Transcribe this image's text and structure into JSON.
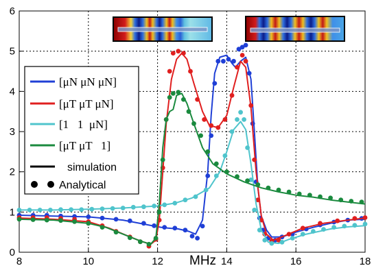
{
  "chart_data": {
    "type": "line",
    "title": "",
    "xlabel": "MHz",
    "ylabel": "",
    "xlim": [
      8,
      18
    ],
    "ylim": [
      0,
      6
    ],
    "grid": true,
    "x_ticks": [
      "8",
      "10",
      "12",
      "14",
      "16",
      "18"
    ],
    "y_ticks": [
      "0",
      "1",
      "2",
      "3",
      "4",
      "5",
      "6"
    ],
    "legend_position": "left",
    "legend": {
      "blue": "[μN μN μN]",
      "red": "[μT μT μN]",
      "cyan": "[1   1  μN]",
      "green": "[μT μT   1]",
      "simulation": "simulation",
      "analytical": "Analytical"
    },
    "colors": {
      "blue": "#1f3fd6",
      "red": "#e01f1f",
      "cyan": "#4fc4cc",
      "green": "#1a8a3e",
      "black": "#000000"
    },
    "series": [
      {
        "key": "blue",
        "line": [
          [
            8,
            0.92
          ],
          [
            9,
            0.9
          ],
          [
            10,
            0.88
          ],
          [
            11,
            0.8
          ],
          [
            11.6,
            0.7
          ],
          [
            11.9,
            0.65
          ],
          [
            12.1,
            0.62
          ],
          [
            12.3,
            0.6
          ],
          [
            12.6,
            0.58
          ],
          [
            12.9,
            0.52
          ],
          [
            13.1,
            0.45
          ],
          [
            13.3,
            0.8
          ],
          [
            13.45,
            2.0
          ],
          [
            13.55,
            3.4
          ],
          [
            13.65,
            4.45
          ],
          [
            13.8,
            4.85
          ],
          [
            14.0,
            4.9
          ],
          [
            14.15,
            4.7
          ],
          [
            14.25,
            4.6
          ],
          [
            14.4,
            4.75
          ],
          [
            14.55,
            4.85
          ],
          [
            14.7,
            4.3
          ],
          [
            14.8,
            3.0
          ],
          [
            14.9,
            1.6
          ],
          [
            15.0,
            0.9
          ],
          [
            15.15,
            0.55
          ],
          [
            15.3,
            0.38
          ],
          [
            15.6,
            0.38
          ],
          [
            16,
            0.5
          ],
          [
            16.5,
            0.62
          ],
          [
            17,
            0.72
          ],
          [
            17.5,
            0.8
          ],
          [
            18,
            0.82
          ]
        ],
        "points": [
          [
            8,
            0.92
          ],
          [
            8.4,
            0.92
          ],
          [
            8.8,
            0.92
          ],
          [
            9.2,
            0.9
          ],
          [
            9.6,
            0.89
          ],
          [
            10,
            0.88
          ],
          [
            10.4,
            0.85
          ],
          [
            10.8,
            0.82
          ],
          [
            11.2,
            0.78
          ],
          [
            11.6,
            0.72
          ],
          [
            11.9,
            0.66
          ],
          [
            12.2,
            0.62
          ],
          [
            12.5,
            0.6
          ],
          [
            12.8,
            0.55
          ],
          [
            13.0,
            0.4
          ],
          [
            13.15,
            0.35
          ],
          [
            13.3,
            0.65
          ],
          [
            13.45,
            1.9
          ],
          [
            13.55,
            2.9
          ],
          [
            13.65,
            4.2
          ],
          [
            13.75,
            4.75
          ],
          [
            13.9,
            4.75
          ],
          [
            14.05,
            4.8
          ],
          [
            14.2,
            4.75
          ],
          [
            14.35,
            5.05
          ],
          [
            14.45,
            5.1
          ],
          [
            14.55,
            5.15
          ],
          [
            14.65,
            4.45
          ],
          [
            14.75,
            3.2
          ],
          [
            14.85,
            1.75
          ],
          [
            14.95,
            0.85
          ],
          [
            15.05,
            0.55
          ],
          [
            15.2,
            0.35
          ],
          [
            15.4,
            0.3
          ],
          [
            15.6,
            0.38
          ],
          [
            15.9,
            0.45
          ],
          [
            16.3,
            0.58
          ],
          [
            16.7,
            0.68
          ],
          [
            17.1,
            0.75
          ],
          [
            17.5,
            0.8
          ],
          [
            17.9,
            0.84
          ]
        ]
      },
      {
        "key": "red",
        "line": [
          [
            8,
            0.85
          ],
          [
            9,
            0.82
          ],
          [
            10,
            0.76
          ],
          [
            10.6,
            0.6
          ],
          [
            11.1,
            0.42
          ],
          [
            11.5,
            0.28
          ],
          [
            11.8,
            0.2
          ],
          [
            11.95,
            0.3
          ],
          [
            12.05,
            0.8
          ],
          [
            12.15,
            2.0
          ],
          [
            12.25,
            3.2
          ],
          [
            12.4,
            4.3
          ],
          [
            12.55,
            4.8
          ],
          [
            12.7,
            4.95
          ],
          [
            12.85,
            4.8
          ],
          [
            13.05,
            4.2
          ],
          [
            13.3,
            3.5
          ],
          [
            13.5,
            3.15
          ],
          [
            13.75,
            3.1
          ],
          [
            14.0,
            3.4
          ],
          [
            14.2,
            4.1
          ],
          [
            14.4,
            4.75
          ],
          [
            14.55,
            4.6
          ],
          [
            14.7,
            3.6
          ],
          [
            14.85,
            2.0
          ],
          [
            15.0,
            0.9
          ],
          [
            15.15,
            0.45
          ],
          [
            15.35,
            0.3
          ],
          [
            15.7,
            0.42
          ],
          [
            16.2,
            0.6
          ],
          [
            16.8,
            0.72
          ],
          [
            17.5,
            0.8
          ],
          [
            18,
            0.85
          ]
        ],
        "points": [
          [
            8,
            0.86
          ],
          [
            8.4,
            0.86
          ],
          [
            8.8,
            0.86
          ],
          [
            9.2,
            0.84
          ],
          [
            9.6,
            0.82
          ],
          [
            10,
            0.76
          ],
          [
            10.4,
            0.66
          ],
          [
            10.8,
            0.52
          ],
          [
            11.2,
            0.38
          ],
          [
            11.5,
            0.26
          ],
          [
            11.75,
            0.15
          ],
          [
            11.95,
            0.32
          ],
          [
            12.05,
            0.8
          ],
          [
            12.15,
            2.1
          ],
          [
            12.25,
            3.3
          ],
          [
            12.35,
            4.5
          ],
          [
            12.45,
            4.95
          ],
          [
            12.6,
            5.0
          ],
          [
            12.75,
            4.95
          ],
          [
            12.95,
            4.5
          ],
          [
            13.15,
            3.8
          ],
          [
            13.35,
            3.3
          ],
          [
            13.55,
            3.15
          ],
          [
            13.75,
            3.1
          ],
          [
            13.95,
            3.3
          ],
          [
            14.15,
            3.9
          ],
          [
            14.3,
            4.6
          ],
          [
            14.45,
            4.9
          ],
          [
            14.55,
            4.75
          ],
          [
            14.7,
            3.65
          ],
          [
            14.8,
            2.3
          ],
          [
            14.9,
            1.3
          ],
          [
            15.0,
            0.8
          ],
          [
            15.1,
            0.45
          ],
          [
            15.3,
            0.28
          ],
          [
            15.5,
            0.3
          ],
          [
            15.8,
            0.45
          ],
          [
            16.2,
            0.6
          ],
          [
            16.7,
            0.72
          ],
          [
            17.2,
            0.78
          ],
          [
            17.7,
            0.84
          ],
          [
            18,
            0.86
          ]
        ]
      },
      {
        "key": "cyan",
        "line": [
          [
            8,
            1.05
          ],
          [
            9,
            1.05
          ],
          [
            10,
            1.07
          ],
          [
            11,
            1.1
          ],
          [
            12,
            1.15
          ],
          [
            12.5,
            1.22
          ],
          [
            13,
            1.35
          ],
          [
            13.5,
            1.6
          ],
          [
            13.8,
            2.0
          ],
          [
            14.0,
            2.5
          ],
          [
            14.2,
            3.05
          ],
          [
            14.4,
            3.25
          ],
          [
            14.55,
            3.05
          ],
          [
            14.7,
            2.2
          ],
          [
            14.85,
            1.2
          ],
          [
            15.0,
            0.55
          ],
          [
            15.2,
            0.25
          ],
          [
            15.5,
            0.22
          ],
          [
            15.8,
            0.32
          ],
          [
            16.3,
            0.45
          ],
          [
            17,
            0.58
          ],
          [
            17.5,
            0.63
          ],
          [
            18,
            0.66
          ]
        ],
        "points": [
          [
            8,
            1.05
          ],
          [
            8.3,
            1.05
          ],
          [
            8.6,
            1.05
          ],
          [
            8.9,
            1.05
          ],
          [
            9.2,
            1.06
          ],
          [
            9.5,
            1.06
          ],
          [
            9.8,
            1.06
          ],
          [
            10.1,
            1.07
          ],
          [
            10.4,
            1.08
          ],
          [
            10.7,
            1.09
          ],
          [
            11.0,
            1.1
          ],
          [
            11.3,
            1.12
          ],
          [
            11.6,
            1.13
          ],
          [
            11.9,
            1.15
          ],
          [
            12.2,
            1.18
          ],
          [
            12.5,
            1.22
          ],
          [
            12.8,
            1.3
          ],
          [
            13.1,
            1.38
          ],
          [
            13.4,
            1.55
          ],
          [
            13.7,
            1.9
          ],
          [
            13.95,
            2.4
          ],
          [
            14.15,
            3.0
          ],
          [
            14.3,
            3.3
          ],
          [
            14.4,
            3.48
          ],
          [
            14.5,
            3.3
          ],
          [
            14.6,
            2.6
          ],
          [
            14.7,
            1.8
          ],
          [
            14.8,
            1.05
          ],
          [
            14.95,
            0.55
          ],
          [
            15.1,
            0.3
          ],
          [
            15.3,
            0.22
          ],
          [
            15.6,
            0.25
          ],
          [
            15.9,
            0.35
          ],
          [
            16.2,
            0.45
          ],
          [
            16.5,
            0.52
          ],
          [
            16.8,
            0.57
          ],
          [
            17.1,
            0.62
          ],
          [
            17.4,
            0.65
          ],
          [
            17.7,
            0.67
          ],
          [
            18,
            0.7
          ]
        ]
      },
      {
        "key": "green",
        "line": [
          [
            8,
            0.82
          ],
          [
            9,
            0.8
          ],
          [
            10,
            0.72
          ],
          [
            10.5,
            0.62
          ],
          [
            11,
            0.45
          ],
          [
            11.5,
            0.28
          ],
          [
            11.8,
            0.2
          ],
          [
            11.95,
            0.35
          ],
          [
            12.05,
            1.2
          ],
          [
            12.15,
            2.6
          ],
          [
            12.25,
            3.3
          ],
          [
            12.35,
            3.5
          ],
          [
            12.45,
            3.55
          ],
          [
            12.55,
            3.9
          ],
          [
            12.7,
            3.95
          ],
          [
            12.85,
            3.7
          ],
          [
            13.05,
            3.2
          ],
          [
            13.3,
            2.6
          ],
          [
            13.6,
            2.2
          ],
          [
            14.0,
            1.95
          ],
          [
            14.5,
            1.75
          ],
          [
            15.0,
            1.6
          ],
          [
            15.5,
            1.5
          ],
          [
            16,
            1.42
          ],
          [
            16.5,
            1.37
          ],
          [
            17,
            1.3
          ],
          [
            17.5,
            1.25
          ],
          [
            18,
            1.2
          ]
        ],
        "points": [
          [
            8,
            0.82
          ],
          [
            8.4,
            0.81
          ],
          [
            8.8,
            0.8
          ],
          [
            9.2,
            0.79
          ],
          [
            9.6,
            0.76
          ],
          [
            10,
            0.72
          ],
          [
            10.4,
            0.62
          ],
          [
            10.8,
            0.5
          ],
          [
            11.2,
            0.36
          ],
          [
            11.5,
            0.26
          ],
          [
            11.75,
            0.2
          ],
          [
            11.95,
            0.35
          ],
          [
            12.05,
            1.0
          ],
          [
            12.15,
            2.3
          ],
          [
            12.25,
            3.3
          ],
          [
            12.35,
            3.85
          ],
          [
            12.45,
            3.95
          ],
          [
            12.6,
            3.98
          ],
          [
            12.75,
            3.8
          ],
          [
            12.9,
            3.5
          ],
          [
            13.05,
            3.2
          ],
          [
            13.25,
            2.9
          ],
          [
            13.45,
            2.5
          ],
          [
            13.7,
            2.2
          ],
          [
            14.0,
            2.0
          ],
          [
            14.3,
            1.88
          ],
          [
            14.6,
            1.78
          ],
          [
            14.9,
            1.68
          ],
          [
            15.2,
            1.6
          ],
          [
            15.5,
            1.55
          ],
          [
            15.8,
            1.5
          ],
          [
            16.1,
            1.45
          ],
          [
            16.4,
            1.42
          ],
          [
            16.7,
            1.38
          ],
          [
            17.0,
            1.35
          ],
          [
            17.3,
            1.3
          ],
          [
            17.6,
            1.27
          ],
          [
            17.9,
            1.25
          ]
        ]
      }
    ]
  }
}
